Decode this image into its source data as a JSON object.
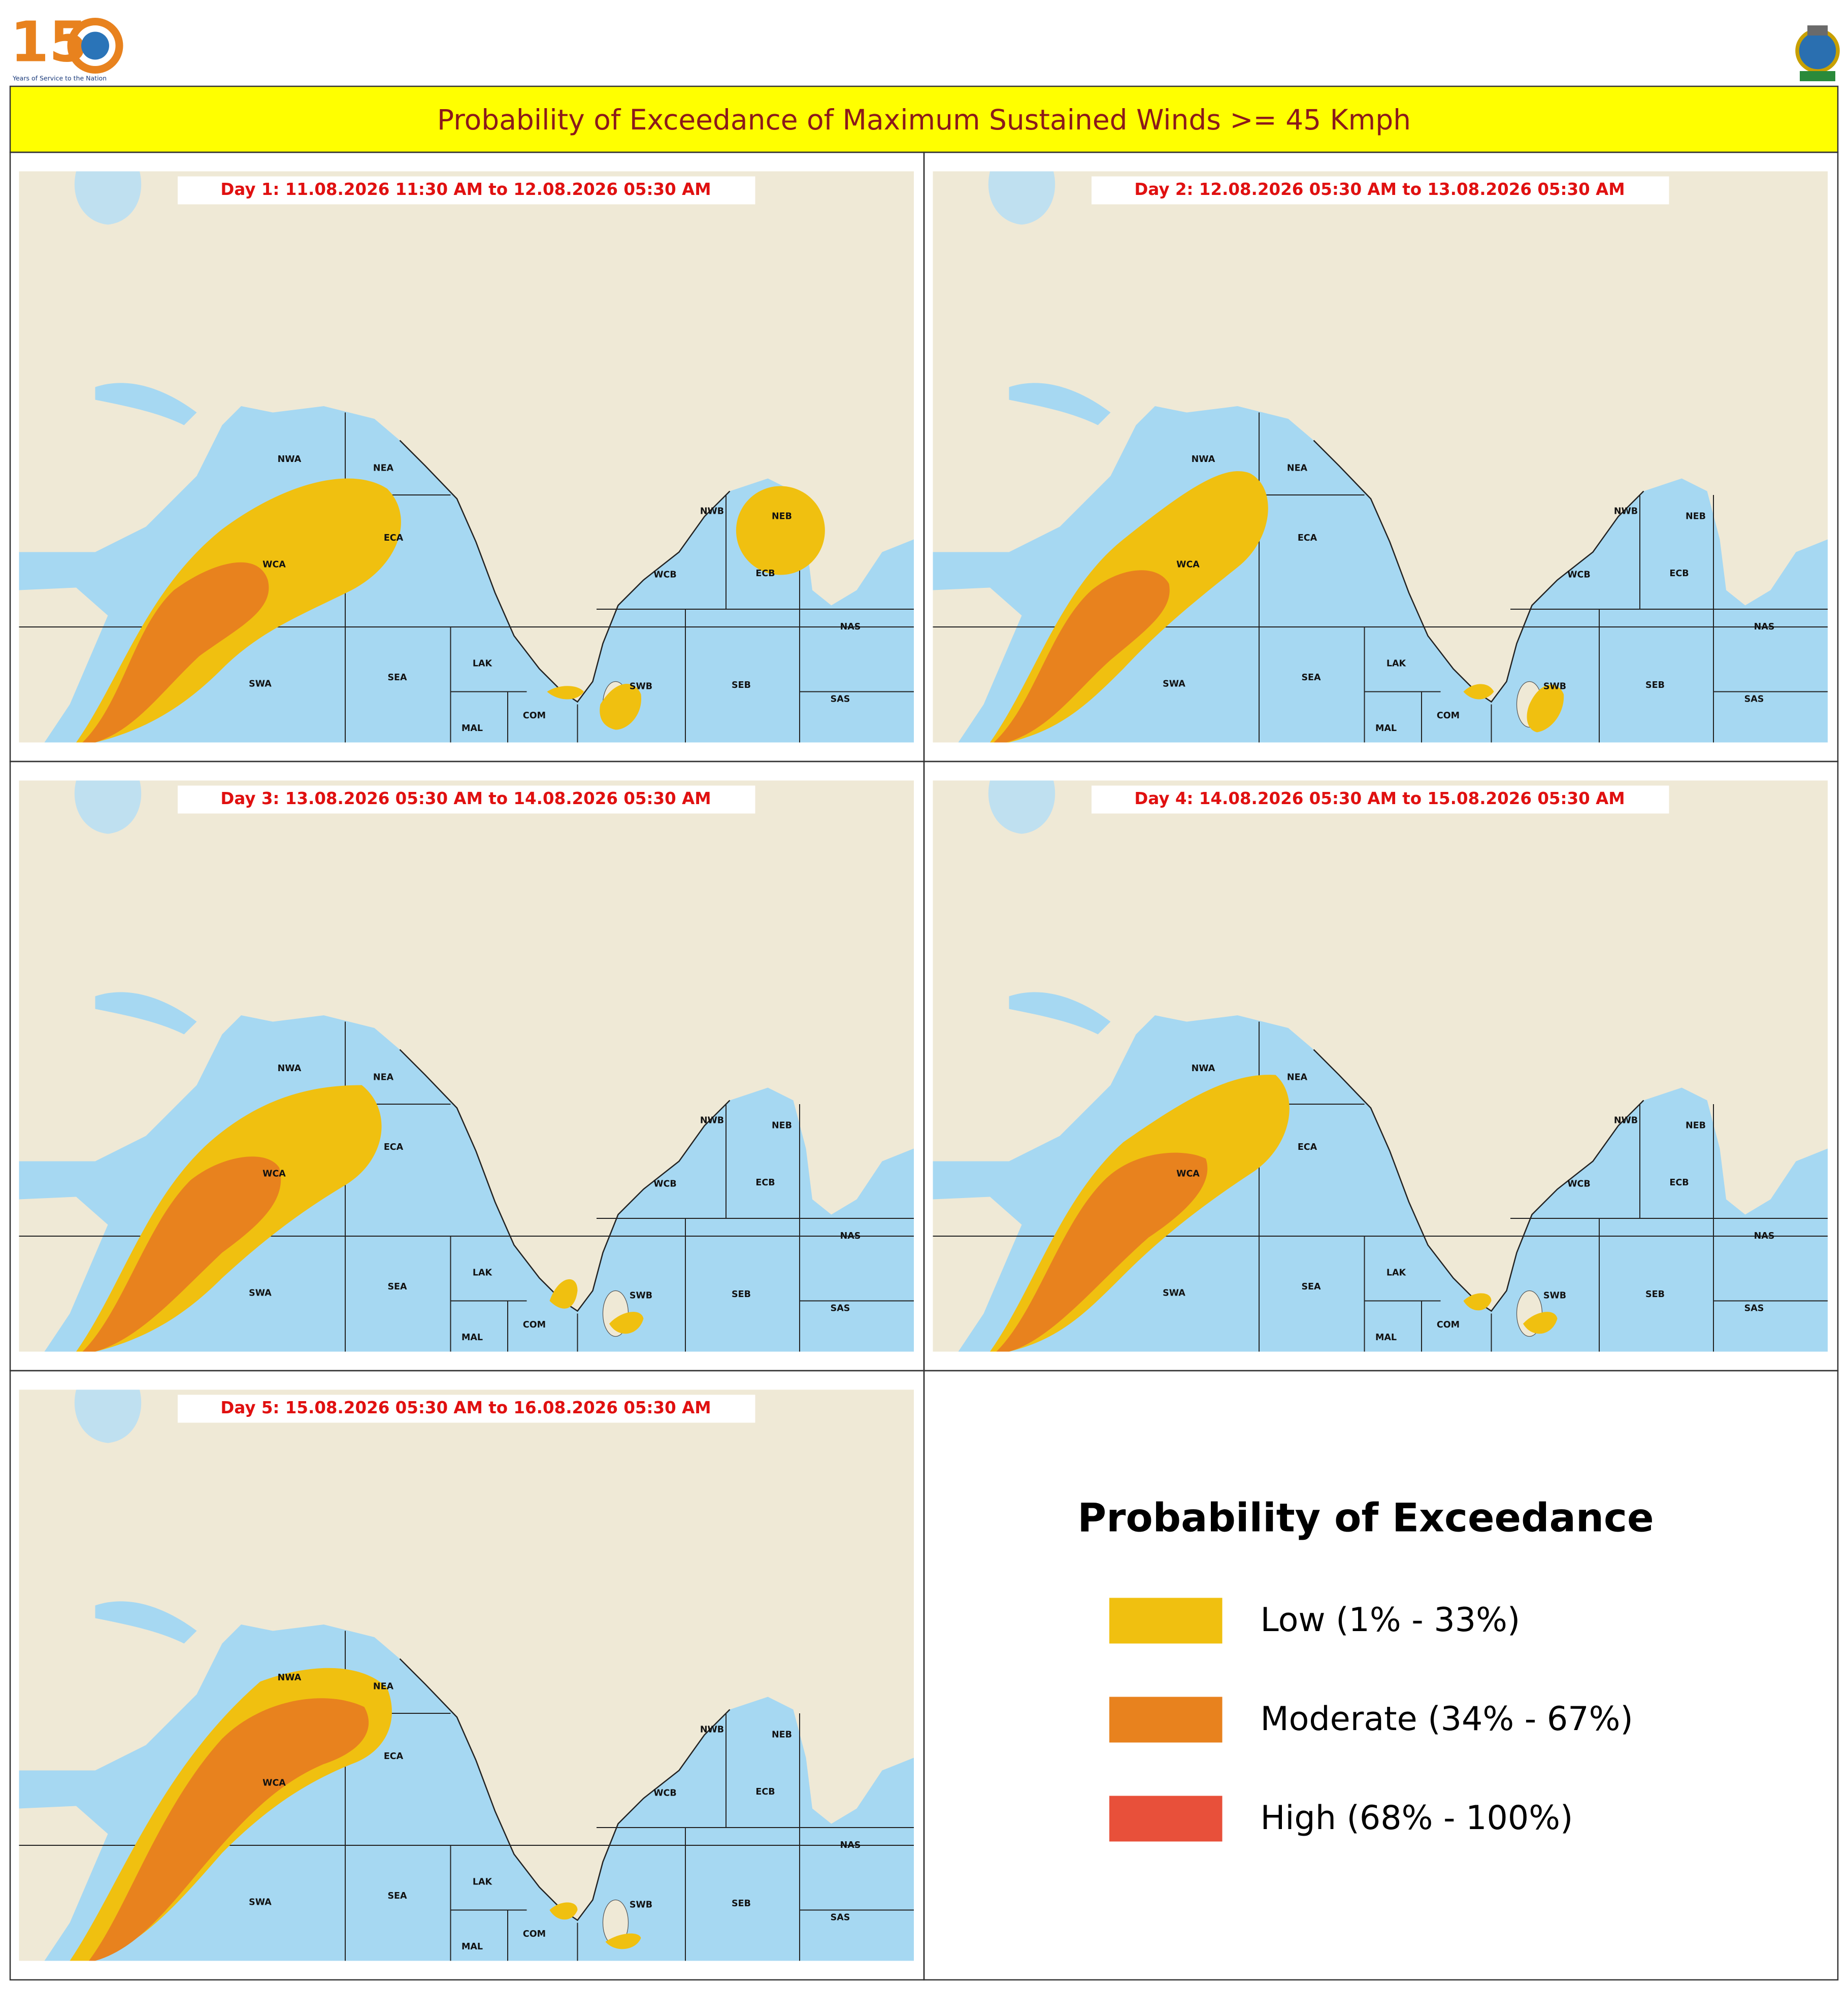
{
  "header": {
    "logo_digits": "15",
    "logo_text": "Years of Service to the Nation",
    "title": "Probability of Exceedance of Maximum Sustained Winds >= 45 Kmph"
  },
  "panels": [
    {
      "title": "Day 1: 11.08.2026 11:30 AM to 12.08.2026 05:30 AM"
    },
    {
      "title": "Day 2: 12.08.2026 05:30 AM to 13.08.2026 05:30 AM"
    },
    {
      "title": "Day 3: 13.08.2026 05:30 AM to 14.08.2026 05:30 AM"
    },
    {
      "title": "Day 4: 14.08.2026 05:30 AM to 15.08.2026 05:30 AM"
    },
    {
      "title": "Day 5: 15.08.2026 05:30 AM to 16.08.2026 05:30 AM"
    }
  ],
  "region_labels": [
    "NWA",
    "NEA",
    "ECA",
    "WCA",
    "SWA",
    "SEA",
    "LAK",
    "MAL",
    "COM",
    "NWB",
    "NEB",
    "WCB",
    "ECB",
    "NAS",
    "SAS",
    "SWB",
    "SEB"
  ],
  "legend": {
    "title": "Probability of Exceedance",
    "items": [
      {
        "label": "Low (1% - 33%)",
        "color": "#f0c010"
      },
      {
        "label": "Moderate (34% - 67%)",
        "color": "#e8821e"
      },
      {
        "label": "High (68% - 100%)",
        "color": "#e8503a"
      }
    ]
  }
}
